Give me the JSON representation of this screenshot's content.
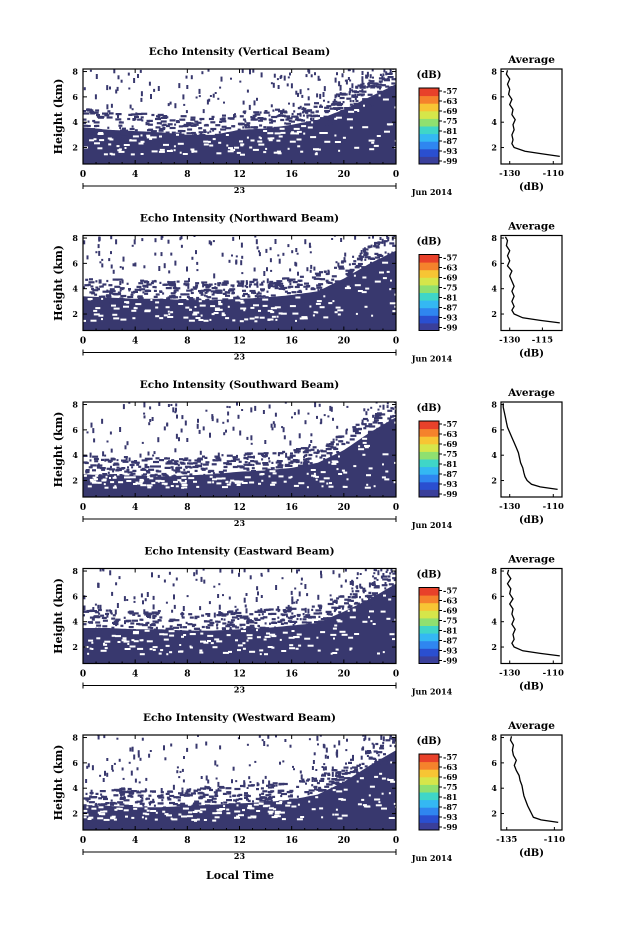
{
  "figure": {
    "xlabel": "Local Time",
    "date_label": "Jun 2014",
    "day_label": "23",
    "ylabel": "Height (km)",
    "cbar_unit": "(dB)",
    "avg_title": "Average",
    "avg_xlabel": "(dB)"
  },
  "colors": {
    "background": "#ffffff",
    "fill": "#38386e",
    "line": "#000000",
    "colorbar": [
      "#3a3f9a",
      "#2a4fd0",
      "#2f86f0",
      "#34b8f3",
      "#3fd6c8",
      "#8fe070",
      "#d6e64a",
      "#f7c534",
      "#f5822c",
      "#e8412a"
    ]
  },
  "chart_data": [
    {
      "type": "heatmap",
      "title": "Echo Intensity (Vertical Beam)",
      "x_ticks": [
        "0",
        "4",
        "8",
        "12",
        "16",
        "20",
        "0"
      ],
      "xlim": [
        0,
        24
      ],
      "y_ticks": [
        "2",
        "4",
        "6",
        "8"
      ],
      "ylim": [
        0.7,
        8.2
      ],
      "cbar_ticks": [
        "-57",
        "-63",
        "-69",
        "-75",
        "-81",
        "-87",
        "-93",
        "-99"
      ],
      "boundary_height_km": [
        [
          0,
          3.6
        ],
        [
          2,
          3.4
        ],
        [
          4,
          3.3
        ],
        [
          6,
          3.2
        ],
        [
          8,
          3.0
        ],
        [
          10,
          3.0
        ],
        [
          12,
          3.4
        ],
        [
          14,
          3.5
        ],
        [
          16,
          3.8
        ],
        [
          18,
          4.2
        ],
        [
          20,
          5.0
        ],
        [
          22,
          6.0
        ],
        [
          24,
          7.0
        ]
      ],
      "avg_profile": {
        "xticks": [
          "-130",
          "-110"
        ],
        "xlim": [
          -134,
          -106
        ],
        "height_km": [
          1.3,
          1.5,
          1.7,
          2,
          2.3,
          2.6,
          3,
          3.4,
          3.8,
          4.2,
          4.6,
          5,
          5.4,
          5.8,
          6.2,
          6.6,
          7,
          7.4,
          7.8,
          8.1
        ],
        "db": [
          -107,
          -115,
          -123,
          -128,
          -129,
          -128.5,
          -129,
          -128,
          -128.5,
          -127.5,
          -129,
          -128.5,
          -130,
          -129,
          -130.5,
          -130,
          -131,
          -130,
          -131.5,
          -131
        ]
      }
    },
    {
      "type": "heatmap",
      "title": "Echo Intensity (Northward Beam)",
      "x_ticks": [
        "0",
        "4",
        "8",
        "12",
        "16",
        "20",
        "0"
      ],
      "xlim": [
        0,
        24
      ],
      "y_ticks": [
        "2",
        "4",
        "6",
        "8"
      ],
      "ylim": [
        0.7,
        8.2
      ],
      "cbar_ticks": [
        "-57",
        "-63",
        "-69",
        "-75",
        "-81",
        "-87",
        "-93",
        "-99"
      ],
      "boundary_height_km": [
        [
          0,
          3.4
        ],
        [
          2,
          3.3
        ],
        [
          4,
          3.2
        ],
        [
          6,
          3.2
        ],
        [
          8,
          3.1
        ],
        [
          10,
          3.1
        ],
        [
          12,
          3.2
        ],
        [
          14,
          3.3
        ],
        [
          16,
          3.5
        ],
        [
          18,
          3.8
        ],
        [
          20,
          4.8
        ],
        [
          22,
          6.0
        ],
        [
          24,
          7.0
        ]
      ],
      "avg_profile": {
        "xticks": [
          "-130",
          "-115"
        ],
        "xlim": [
          -134,
          -106
        ],
        "height_km": [
          1.3,
          1.5,
          1.7,
          2,
          2.3,
          2.6,
          3,
          3.4,
          3.8,
          4.2,
          4.6,
          5,
          5.4,
          5.8,
          6.2,
          6.6,
          7,
          7.4,
          7.8,
          8.1
        ],
        "db": [
          -107,
          -116,
          -124,
          -128,
          -129,
          -128,
          -129,
          -128,
          -129,
          -128,
          -129,
          -130,
          -129,
          -131,
          -130,
          -131,
          -130,
          -131.5,
          -131,
          -132
        ]
      }
    },
    {
      "type": "heatmap",
      "title": "Echo Intensity (Southward Beam)",
      "x_ticks": [
        "0",
        "4",
        "8",
        "12",
        "16",
        "20",
        "0"
      ],
      "xlim": [
        0,
        24
      ],
      "y_ticks": [
        "2",
        "4",
        "6",
        "8"
      ],
      "ylim": [
        0.7,
        8.2
      ],
      "cbar_ticks": [
        "-57",
        "-63",
        "-69",
        "-75",
        "-81",
        "-87",
        "-93",
        "-99"
      ],
      "boundary_height_km": [
        [
          0,
          2.5
        ],
        [
          2,
          2.4
        ],
        [
          4,
          2.4
        ],
        [
          6,
          2.3
        ],
        [
          8,
          2.4
        ],
        [
          10,
          2.5
        ],
        [
          12,
          2.7
        ],
        [
          14,
          2.8
        ],
        [
          16,
          3.0
        ],
        [
          18,
          3.4
        ],
        [
          20,
          4.4
        ],
        [
          22,
          5.8
        ],
        [
          24,
          7.0
        ]
      ],
      "avg_profile": {
        "xticks": [
          "-130",
          "-110"
        ],
        "xlim": [
          -134,
          -106
        ],
        "height_km": [
          1.3,
          1.5,
          1.7,
          2,
          2.3,
          2.6,
          3,
          3.4,
          3.8,
          4.2,
          4.6,
          5,
          5.4,
          5.8,
          6.2,
          6.6,
          7,
          7.4,
          7.8,
          8.1
        ],
        "db": [
          -108,
          -116,
          -120,
          -122,
          -123,
          -123.5,
          -124,
          -125,
          -125.5,
          -126,
          -127,
          -128,
          -129,
          -130,
          -131,
          -131.5,
          -132,
          -132.5,
          -133,
          -133
        ]
      }
    },
    {
      "type": "heatmap",
      "title": "Echo Intensity (Eastward Beam)",
      "x_ticks": [
        "0",
        "4",
        "8",
        "12",
        "16",
        "20",
        "0"
      ],
      "xlim": [
        0,
        24
      ],
      "y_ticks": [
        "2",
        "4",
        "6",
        "8"
      ],
      "ylim": [
        0.7,
        8.2
      ],
      "cbar_ticks": [
        "-57",
        "-63",
        "-69",
        "-75",
        "-81",
        "-87",
        "-93",
        "-99"
      ],
      "boundary_height_km": [
        [
          0,
          3.5
        ],
        [
          2,
          3.5
        ],
        [
          4,
          3.4
        ],
        [
          6,
          3.4
        ],
        [
          8,
          3.3
        ],
        [
          10,
          3.3
        ],
        [
          12,
          3.4
        ],
        [
          14,
          3.5
        ],
        [
          16,
          3.7
        ],
        [
          18,
          3.9
        ],
        [
          20,
          4.8
        ],
        [
          22,
          5.8
        ],
        [
          24,
          7.0
        ]
      ],
      "avg_profile": {
        "xticks": [
          "-130",
          "-110"
        ],
        "xlim": [
          -134,
          -106
        ],
        "height_km": [
          1.3,
          1.5,
          1.7,
          2,
          2.3,
          2.6,
          3,
          3.4,
          3.8,
          4.2,
          4.6,
          5,
          5.4,
          5.8,
          6.2,
          6.6,
          7,
          7.4,
          7.8,
          8.1
        ],
        "db": [
          -107,
          -116,
          -124,
          -128,
          -129,
          -128,
          -128.5,
          -127.5,
          -129,
          -128,
          -129,
          -128.5,
          -130,
          -128.5,
          -130,
          -129.5,
          -131,
          -129.5,
          -131,
          -130.5
        ]
      }
    },
    {
      "type": "heatmap",
      "title": "Echo Intensity (Westward Beam)",
      "x_ticks": [
        "0",
        "4",
        "8",
        "12",
        "16",
        "20",
        "0"
      ],
      "xlim": [
        0,
        24
      ],
      "y_ticks": [
        "2",
        "4",
        "6",
        "8"
      ],
      "ylim": [
        0.7,
        8.2
      ],
      "cbar_ticks": [
        "-57",
        "-63",
        "-69",
        "-75",
        "-81",
        "-87",
        "-93",
        "-99"
      ],
      "boundary_height_km": [
        [
          0,
          2.6
        ],
        [
          2,
          2.6
        ],
        [
          4,
          2.5
        ],
        [
          6,
          2.5
        ],
        [
          8,
          2.6
        ],
        [
          10,
          2.7
        ],
        [
          12,
          2.8
        ],
        [
          14,
          2.9
        ],
        [
          16,
          3.1
        ],
        [
          18,
          3.5
        ],
        [
          20,
          4.5
        ],
        [
          22,
          5.8
        ],
        [
          24,
          7.0
        ]
      ],
      "avg_profile": {
        "xticks": [
          "-135",
          "-110"
        ],
        "xlim": [
          -138,
          -106
        ],
        "height_km": [
          1.3,
          1.5,
          1.7,
          2,
          2.3,
          2.6,
          3,
          3.4,
          3.8,
          4.2,
          4.6,
          5,
          5.4,
          5.8,
          6.2,
          6.6,
          7,
          7.4,
          7.8,
          8.1
        ],
        "db": [
          -108,
          -117,
          -121,
          -122,
          -123,
          -124,
          -125,
          -126,
          -126.5,
          -127,
          -128,
          -128.5,
          -130,
          -131,
          -130,
          -131.5,
          -132,
          -131.5,
          -133,
          -132.5
        ]
      }
    }
  ]
}
